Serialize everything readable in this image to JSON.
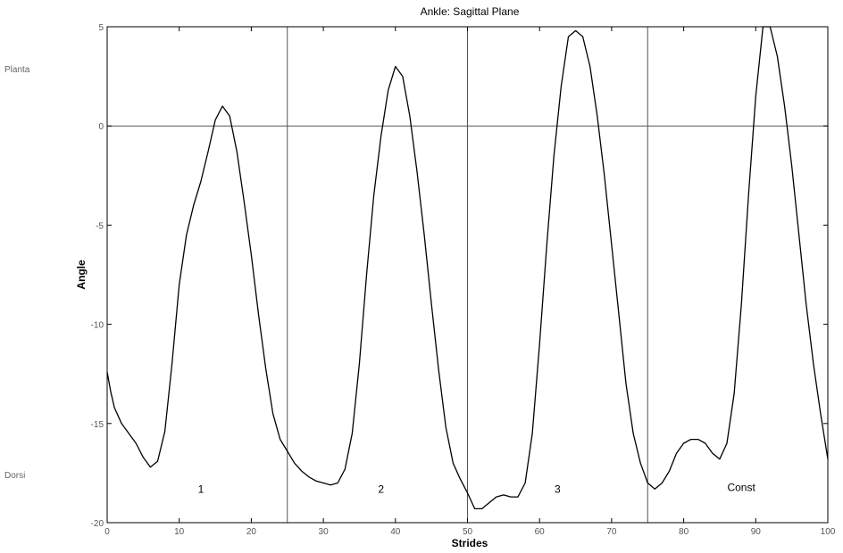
{
  "chart_data": {
    "type": "line",
    "title": "Ankle: Sagittal Plane",
    "xlabel": "Strides",
    "ylabel": "Angle",
    "xlim": [
      0,
      100
    ],
    "ylim": [
      -20,
      5
    ],
    "xticks": [
      0,
      10,
      20,
      30,
      40,
      50,
      60,
      70,
      80,
      90,
      100
    ],
    "yticks": [
      5,
      0,
      -5,
      -10,
      -15,
      -20
    ],
    "grid": false,
    "reference_lines": {
      "y": [
        0
      ],
      "x": [
        25,
        50,
        75
      ]
    },
    "segment_labels": [
      {
        "text": "1",
        "x": 13,
        "y": -18.5
      },
      {
        "text": "2",
        "x": 38,
        "y": -18.5
      },
      {
        "text": "3",
        "x": 62.5,
        "y": -18.5
      },
      {
        "text": "Const",
        "x": 88,
        "y": -18.4
      }
    ],
    "side_labels": {
      "top": "Planta",
      "bottom": "Dorsi"
    },
    "colors": {
      "line": "#000000",
      "axis": "#000000",
      "reference": "#555555"
    },
    "series": [
      {
        "x": [
          0,
          0.5,
          1,
          2,
          3,
          4,
          5,
          6,
          7,
          8,
          9,
          10,
          11,
          12,
          13,
          14,
          15,
          16,
          17,
          18,
          19,
          20,
          21,
          22,
          23,
          24,
          25,
          26,
          27,
          28,
          29,
          30,
          31,
          32,
          33,
          34,
          35,
          36,
          37,
          38,
          39,
          40,
          41,
          42,
          43,
          44,
          45,
          46,
          47,
          48,
          49,
          50,
          51,
          52,
          53,
          54,
          55,
          56,
          57,
          58,
          59,
          60,
          61,
          62,
          63,
          64,
          65,
          66,
          67,
          68,
          69,
          70,
          71,
          72,
          73,
          74,
          75,
          76,
          77,
          78,
          79,
          80,
          81,
          82,
          83,
          84,
          85,
          86,
          87,
          88,
          89,
          90,
          91,
          92,
          93,
          94,
          95,
          96,
          97,
          98,
          99,
          100
        ],
        "values": [
          -12.4,
          -13.4,
          -14.2,
          -15.0,
          -15.5,
          -16.0,
          -16.7,
          -17.2,
          -16.9,
          -15.4,
          -12.0,
          -8.0,
          -5.5,
          -4.0,
          -2.8,
          -1.3,
          0.3,
          1.0,
          0.5,
          -1.3,
          -3.8,
          -6.5,
          -9.5,
          -12.2,
          -14.5,
          -15.8,
          -16.4,
          -17.0,
          -17.4,
          -17.7,
          -17.9,
          -18.0,
          -18.1,
          -18.0,
          -17.3,
          -15.5,
          -12.0,
          -7.5,
          -3.5,
          -0.5,
          1.8,
          3.0,
          2.5,
          0.5,
          -2.3,
          -5.5,
          -9.0,
          -12.3,
          -15.2,
          -17.0,
          -17.8,
          -18.5,
          -19.3,
          -19.3,
          -19.0,
          -18.7,
          -18.6,
          -18.7,
          -18.7,
          -18.0,
          -15.5,
          -11.0,
          -6.0,
          -1.5,
          2.0,
          4.5,
          4.8,
          4.5,
          3.0,
          0.5,
          -2.5,
          -6.0,
          -9.5,
          -13.0,
          -15.5,
          -17.0,
          -18.0,
          -18.3,
          -18.0,
          -17.4,
          -16.5,
          -16.0,
          -15.8,
          -15.8,
          -16.0,
          -16.5,
          -16.8,
          -16.0,
          -13.5,
          -9.0,
          -3.5,
          1.5,
          5.0,
          5.0,
          3.5,
          1.0,
          -2.0,
          -5.5,
          -9.0,
          -12.0,
          -14.5,
          -16.8
        ]
      }
    ]
  }
}
